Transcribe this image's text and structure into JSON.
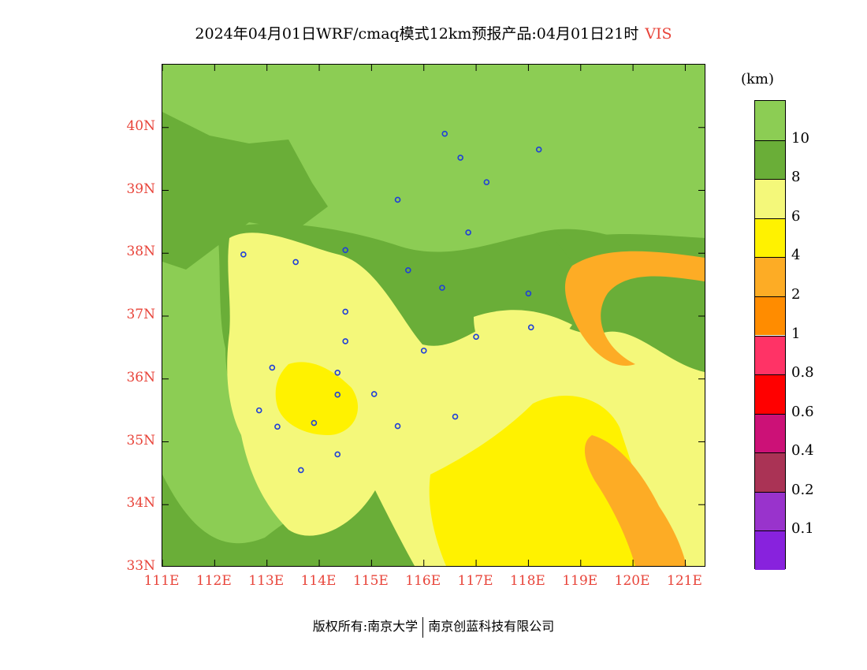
{
  "title": {
    "main": "2024年04月01日WRF/cmaq模式12km预报产品:04月01日21时",
    "variable": "VIS"
  },
  "colors": {
    "axis_label": "#e8443a",
    "background_green": "#8ccd54"
  },
  "map": {
    "lat_range": [
      33,
      41
    ],
    "lon_range": [
      111,
      121.4
    ],
    "lat_ticks": [
      {
        "value": 40,
        "label": "40N"
      },
      {
        "value": 39,
        "label": "39N"
      },
      {
        "value": 38,
        "label": "38N"
      },
      {
        "value": 37,
        "label": "37N"
      },
      {
        "value": 36,
        "label": "36N"
      },
      {
        "value": 35,
        "label": "35N"
      },
      {
        "value": 34,
        "label": "34N"
      },
      {
        "value": 33,
        "label": "33N"
      }
    ],
    "lon_ticks": [
      {
        "value": 111,
        "label": "111E"
      },
      {
        "value": 112,
        "label": "112E"
      },
      {
        "value": 113,
        "label": "113E"
      },
      {
        "value": 114,
        "label": "114E"
      },
      {
        "value": 115,
        "label": "115E"
      },
      {
        "value": 116,
        "label": "116E"
      },
      {
        "value": 117,
        "label": "117E"
      },
      {
        "value": 118,
        "label": "118E"
      },
      {
        "value": 119,
        "label": "119E"
      },
      {
        "value": 120,
        "label": "120E"
      },
      {
        "value": 121,
        "label": "121E"
      }
    ],
    "stations": [
      {
        "lon": 116.4,
        "lat": 39.9
      },
      {
        "lon": 118.2,
        "lat": 39.65
      },
      {
        "lon": 116.7,
        "lat": 39.52
      },
      {
        "lon": 117.2,
        "lat": 39.13
      },
      {
        "lon": 115.5,
        "lat": 38.85
      },
      {
        "lon": 116.85,
        "lat": 38.33
      },
      {
        "lon": 112.55,
        "lat": 37.98
      },
      {
        "lon": 114.5,
        "lat": 38.05
      },
      {
        "lon": 113.55,
        "lat": 37.86
      },
      {
        "lon": 115.7,
        "lat": 37.73
      },
      {
        "lon": 116.35,
        "lat": 37.45
      },
      {
        "lon": 118.0,
        "lat": 37.36
      },
      {
        "lon": 114.5,
        "lat": 37.07
      },
      {
        "lon": 118.05,
        "lat": 36.82
      },
      {
        "lon": 117.0,
        "lat": 36.67
      },
      {
        "lon": 114.5,
        "lat": 36.6
      },
      {
        "lon": 116.0,
        "lat": 36.45
      },
      {
        "lon": 113.1,
        "lat": 36.18
      },
      {
        "lon": 114.35,
        "lat": 36.1
      },
      {
        "lon": 114.35,
        "lat": 35.75
      },
      {
        "lon": 115.05,
        "lat": 35.76
      },
      {
        "lon": 112.85,
        "lat": 35.5
      },
      {
        "lon": 116.6,
        "lat": 35.4
      },
      {
        "lon": 113.9,
        "lat": 35.3
      },
      {
        "lon": 115.5,
        "lat": 35.25
      },
      {
        "lon": 113.2,
        "lat": 35.24
      },
      {
        "lon": 114.35,
        "lat": 34.8
      },
      {
        "lon": 113.65,
        "lat": 34.55
      }
    ]
  },
  "colorbar": {
    "unit": "(km)",
    "colors": [
      "#8ccd54",
      "#6aae38",
      "#f4f87a",
      "#fff200",
      "#fdac25",
      "#ff8c00",
      "#ff3366",
      "#ff0000",
      "#cc1177",
      "#aa3355",
      "#9933cc",
      "#8822dd"
    ],
    "labels": [
      "10",
      "8",
      "6",
      "4",
      "2",
      "1",
      "0.8",
      "0.6",
      "0.4",
      "0.2",
      "0.1"
    ]
  },
  "footer": {
    "left": "版权所有:南京大学",
    "right": "南京创蓝科技有限公司"
  }
}
